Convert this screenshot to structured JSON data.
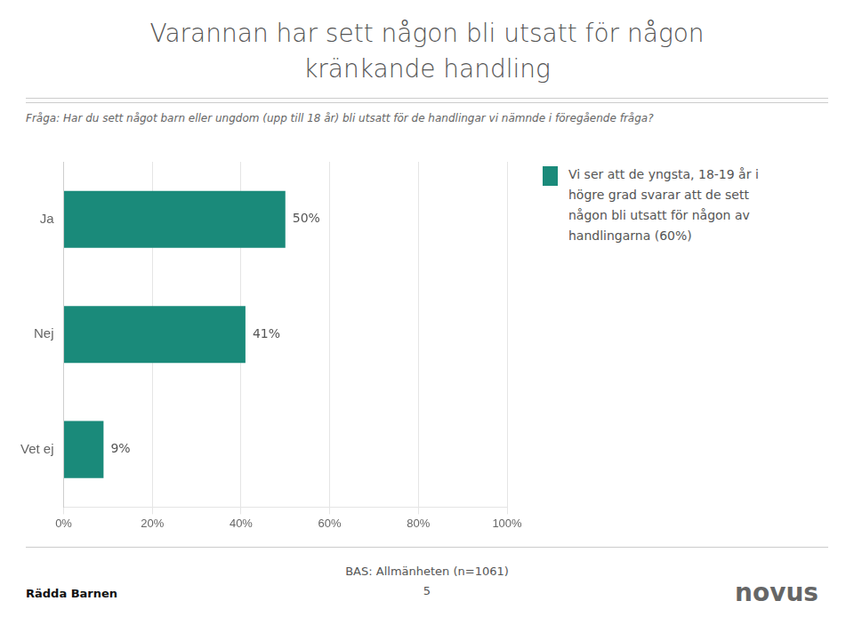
{
  "chart_data": {
    "type": "bar",
    "orientation": "horizontal",
    "title": [
      "Varannan har sett någon bli utsatt för någon",
      "kränkande handling"
    ],
    "subtitle": "Fråga: Har du sett något barn eller ungdom (upp till 18 år) bli utsatt för de handlingar vi nämnde i föregående fråga?",
    "categories": [
      "Ja",
      "Nej",
      "Vet ej"
    ],
    "values": [
      50,
      41,
      9
    ],
    "value_labels": [
      "50%",
      "41%",
      "9%"
    ],
    "data_labels": true,
    "color": "#1a8a7a",
    "xlim": [
      0,
      100
    ],
    "xticks": [
      {
        "value": 0,
        "label": "0%"
      },
      {
        "value": 20,
        "label": "20%"
      },
      {
        "value": 40,
        "label": "40%"
      },
      {
        "value": 60,
        "label": "60%"
      },
      {
        "value": 80,
        "label": "80%"
      },
      {
        "value": 100,
        "label": "100%"
      }
    ],
    "grid": true,
    "annotations": [
      [
        "Vi ser att de yngsta, 18-19 år i",
        "högre grad svarar att de sett",
        "någon bli utsatt för någon av",
        "handlingarna (60%)"
      ],
      [
        "BAS: Allmänheten (n=1061)"
      ],
      [
        "5"
      ],
      [
        "Rädda Barnen"
      ],
      [
        "novus"
      ]
    ]
  }
}
